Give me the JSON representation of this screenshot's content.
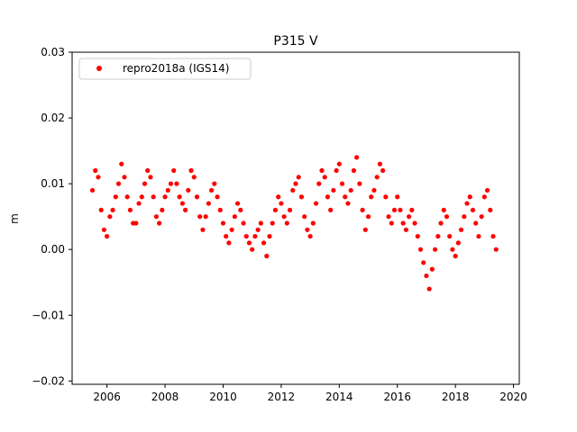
{
  "chart_data": {
    "type": "scatter",
    "title": "P315 V",
    "xlabel": "",
    "ylabel": "m",
    "xlim": [
      2004.8,
      2020.2
    ],
    "ylim": [
      -0.0205,
      0.03
    ],
    "xticks": [
      2006,
      2008,
      2010,
      2012,
      2014,
      2016,
      2018,
      2020
    ],
    "xtick_labels": [
      "2006",
      "2008",
      "2010",
      "2012",
      "2014",
      "2016",
      "2018",
      "2020"
    ],
    "yticks": [
      -0.02,
      -0.01,
      0.0,
      0.01,
      0.02,
      0.03
    ],
    "ytick_labels": [
      "−0.02",
      "−0.01",
      "0.00",
      "0.01",
      "0.02",
      "0.03"
    ],
    "grid": false,
    "legend_position": "top-left",
    "series": [
      {
        "name": "repro2018a (IGS14)",
        "color": "#ff0000",
        "marker": "circle",
        "x": [
          2005.5,
          2005.6,
          2005.7,
          2005.8,
          2005.9,
          2006.0,
          2006.1,
          2006.2,
          2006.3,
          2006.4,
          2006.5,
          2006.6,
          2006.7,
          2006.8,
          2006.9,
          2007.0,
          2007.1,
          2007.2,
          2007.3,
          2007.4,
          2007.5,
          2007.6,
          2007.7,
          2007.8,
          2007.9,
          2008.0,
          2008.1,
          2008.2,
          2008.3,
          2008.4,
          2008.5,
          2008.6,
          2008.7,
          2008.8,
          2008.9,
          2009.0,
          2009.1,
          2009.2,
          2009.3,
          2009.4,
          2009.5,
          2009.6,
          2009.7,
          2009.8,
          2009.9,
          2010.0,
          2010.1,
          2010.2,
          2010.3,
          2010.4,
          2010.5,
          2010.6,
          2010.7,
          2010.8,
          2010.9,
          2011.0,
          2011.1,
          2011.2,
          2011.3,
          2011.4,
          2011.5,
          2011.6,
          2011.7,
          2011.8,
          2011.9,
          2012.0,
          2012.1,
          2012.2,
          2012.3,
          2012.4,
          2012.5,
          2012.6,
          2012.7,
          2012.8,
          2012.9,
          2013.0,
          2013.1,
          2013.2,
          2013.3,
          2013.4,
          2013.5,
          2013.6,
          2013.7,
          2013.8,
          2013.9,
          2014.0,
          2014.1,
          2014.2,
          2014.3,
          2014.4,
          2014.5,
          2014.6,
          2014.7,
          2014.8,
          2014.9,
          2015.0,
          2015.1,
          2015.2,
          2015.3,
          2015.4,
          2015.5,
          2015.6,
          2015.7,
          2015.8,
          2015.9,
          2016.0,
          2016.1,
          2016.2,
          2016.3,
          2016.4,
          2016.5,
          2016.6,
          2016.7,
          2016.8,
          2016.9,
          2017.0,
          2017.1,
          2017.2,
          2017.3,
          2017.4,
          2017.5,
          2017.6,
          2017.7,
          2017.8,
          2017.9,
          2018.0,
          2018.1,
          2018.2,
          2018.3,
          2018.4,
          2018.5,
          2018.6,
          2018.7,
          2018.8,
          2018.9,
          2019.0,
          2019.1,
          2019.2,
          2019.3,
          2019.4
        ],
        "y": [
          0.009,
          0.012,
          0.011,
          0.006,
          0.003,
          0.002,
          0.005,
          0.006,
          0.008,
          0.01,
          0.013,
          0.011,
          0.008,
          0.006,
          0.004,
          0.004,
          0.007,
          0.008,
          0.01,
          0.012,
          0.011,
          0.008,
          0.005,
          0.004,
          0.006,
          0.008,
          0.009,
          0.01,
          0.012,
          0.01,
          0.008,
          0.007,
          0.006,
          0.009,
          0.012,
          0.011,
          0.008,
          0.005,
          0.003,
          0.005,
          0.007,
          0.009,
          0.01,
          0.008,
          0.006,
          0.004,
          0.002,
          0.001,
          0.003,
          0.005,
          0.007,
          0.006,
          0.004,
          0.002,
          0.001,
          0.0,
          0.002,
          0.003,
          0.004,
          0.001,
          -0.001,
          0.002,
          0.004,
          0.006,
          0.008,
          0.007,
          0.005,
          0.004,
          0.006,
          0.009,
          0.01,
          0.011,
          0.008,
          0.005,
          0.003,
          0.002,
          0.004,
          0.007,
          0.01,
          0.012,
          0.011,
          0.008,
          0.006,
          0.009,
          0.012,
          0.013,
          0.01,
          0.008,
          0.007,
          0.009,
          0.012,
          0.014,
          0.01,
          0.006,
          0.003,
          0.005,
          0.008,
          0.009,
          0.011,
          0.013,
          0.012,
          0.008,
          0.005,
          0.004,
          0.006,
          0.008,
          0.006,
          0.004,
          0.003,
          0.005,
          0.006,
          0.004,
          0.002,
          0.0,
          -0.002,
          -0.004,
          -0.006,
          -0.003,
          0.0,
          0.002,
          0.004,
          0.006,
          0.005,
          0.002,
          0.0,
          -0.001,
          0.001,
          0.003,
          0.005,
          0.007,
          0.008,
          0.006,
          0.004,
          0.002,
          0.005,
          0.008,
          0.009,
          0.006,
          0.002,
          0.0
        ]
      }
    ]
  }
}
